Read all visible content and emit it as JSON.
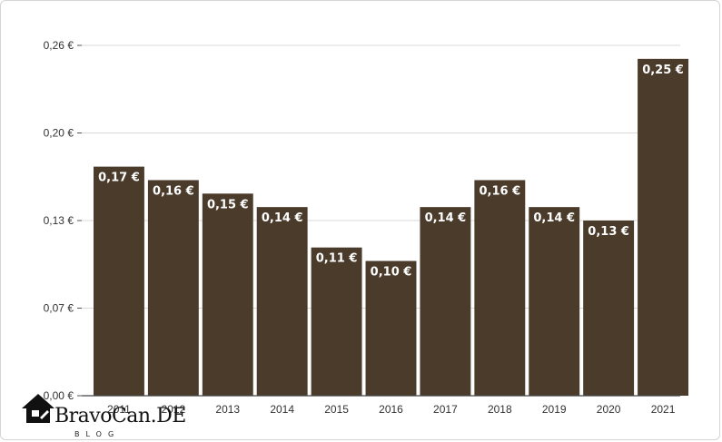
{
  "chart_data": {
    "type": "bar",
    "categories": [
      "2011",
      "2012",
      "2013",
      "2014",
      "2015",
      "2016",
      "2017",
      "2018",
      "2019",
      "2020",
      "2021"
    ],
    "values": [
      0.17,
      0.16,
      0.15,
      0.14,
      0.11,
      0.1,
      0.14,
      0.16,
      0.14,
      0.13,
      0.25
    ],
    "value_labels": [
      "0,17 €",
      "0,16 €",
      "0,15 €",
      "0,14 €",
      "0,11 €",
      "0,10 €",
      "0,14 €",
      "0,16 €",
      "0,14 €",
      "0,13 €",
      "0,25 €"
    ],
    "yticks": [
      0,
      0.065,
      0.13,
      0.195,
      0.26
    ],
    "ytick_labels": [
      "0,00 €",
      "0,07 €",
      "0,13 €",
      "0,20 €",
      "0,26 €"
    ],
    "ylim": [
      0,
      0.26
    ],
    "grid": true,
    "bar_color": "#4a3b2b",
    "title": "",
    "xlabel": "",
    "ylabel": ""
  },
  "watermark": {
    "name": "BravoCan.DE",
    "sub": "BLOG",
    "icon": "house-logo-icon"
  }
}
